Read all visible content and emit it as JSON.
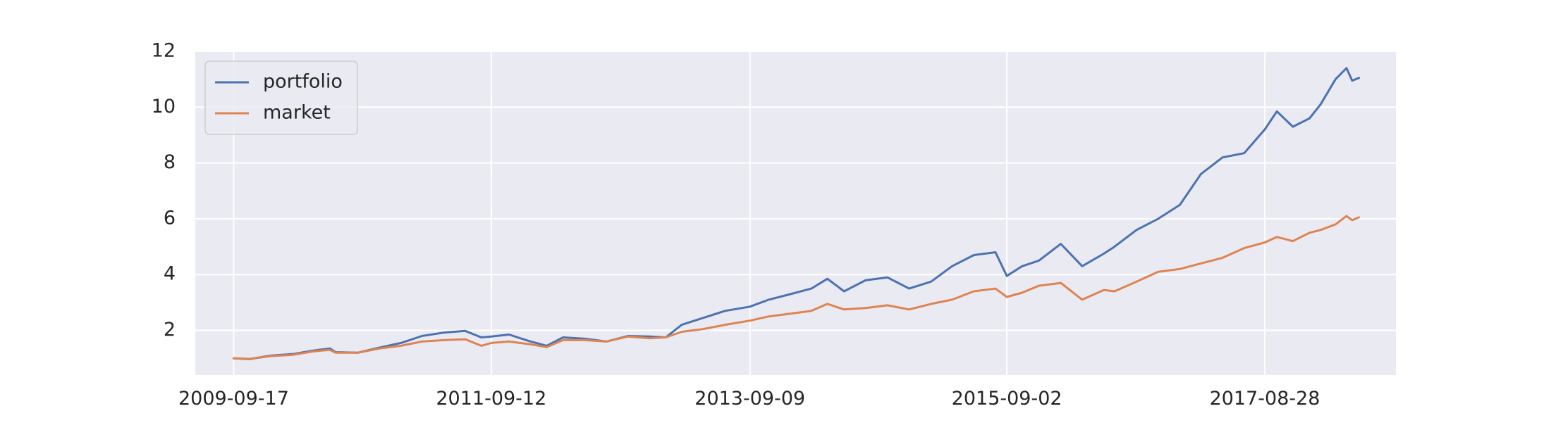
{
  "chart_data": {
    "type": "line",
    "title": "",
    "xlabel": "",
    "ylabel": "",
    "x_tick_labels": [
      "2009-09-17",
      "2011-09-12",
      "2013-09-09",
      "2015-09-02",
      "2017-08-28"
    ],
    "y_tick_labels": [
      "2",
      "4",
      "6",
      "8",
      "10",
      "12"
    ],
    "ylim": [
      0.4,
      12
    ],
    "xlim": [
      "2009-06-01",
      "2018-09-01"
    ],
    "grid": true,
    "legend": {
      "position": "top-left",
      "entries": [
        "portfolio",
        "market"
      ]
    },
    "series": [
      {
        "name": "portfolio",
        "color": "#4c72b0",
        "points": [
          [
            "2009-09-17",
            1.0
          ],
          [
            "2009-11-01",
            0.97
          ],
          [
            "2010-01-01",
            1.1
          ],
          [
            "2010-03-01",
            1.15
          ],
          [
            "2010-05-01",
            1.28
          ],
          [
            "2010-06-15",
            1.35
          ],
          [
            "2010-07-01",
            1.22
          ],
          [
            "2010-09-01",
            1.2
          ],
          [
            "2010-11-01",
            1.38
          ],
          [
            "2011-01-01",
            1.55
          ],
          [
            "2011-03-01",
            1.8
          ],
          [
            "2011-05-01",
            1.92
          ],
          [
            "2011-07-01",
            1.98
          ],
          [
            "2011-08-15",
            1.75
          ],
          [
            "2011-09-12",
            1.78
          ],
          [
            "2011-11-01",
            1.85
          ],
          [
            "2012-01-01",
            1.6
          ],
          [
            "2012-02-15",
            1.45
          ],
          [
            "2012-04-01",
            1.75
          ],
          [
            "2012-06-01",
            1.7
          ],
          [
            "2012-08-01",
            1.6
          ],
          [
            "2012-10-01",
            1.8
          ],
          [
            "2012-12-01",
            1.78
          ],
          [
            "2013-01-15",
            1.75
          ],
          [
            "2013-03-01",
            2.2
          ],
          [
            "2013-05-01",
            2.45
          ],
          [
            "2013-07-01",
            2.7
          ],
          [
            "2013-09-09",
            2.85
          ],
          [
            "2013-11-01",
            3.1
          ],
          [
            "2014-01-01",
            3.3
          ],
          [
            "2014-03-01",
            3.5
          ],
          [
            "2014-04-15",
            3.85
          ],
          [
            "2014-06-01",
            3.4
          ],
          [
            "2014-08-01",
            3.8
          ],
          [
            "2014-10-01",
            3.9
          ],
          [
            "2014-12-01",
            3.5
          ],
          [
            "2015-02-01",
            3.75
          ],
          [
            "2015-04-01",
            4.3
          ],
          [
            "2015-06-01",
            4.7
          ],
          [
            "2015-08-01",
            4.8
          ],
          [
            "2015-09-02",
            3.95
          ],
          [
            "2015-10-15",
            4.3
          ],
          [
            "2015-12-01",
            4.5
          ],
          [
            "2016-02-01",
            5.1
          ],
          [
            "2016-04-01",
            4.3
          ],
          [
            "2016-06-01",
            4.75
          ],
          [
            "2016-07-01",
            5.0
          ],
          [
            "2016-09-01",
            5.6
          ],
          [
            "2016-11-01",
            6.0
          ],
          [
            "2017-01-01",
            6.5
          ],
          [
            "2017-03-01",
            7.6
          ],
          [
            "2017-05-01",
            8.2
          ],
          [
            "2017-07-01",
            8.35
          ],
          [
            "2017-08-28",
            9.2
          ],
          [
            "2017-10-01",
            9.85
          ],
          [
            "2017-11-15",
            9.3
          ],
          [
            "2018-01-01",
            9.6
          ],
          [
            "2018-02-01",
            10.1
          ],
          [
            "2018-03-15",
            11.0
          ],
          [
            "2018-04-15",
            11.4
          ],
          [
            "2018-05-01",
            10.95
          ],
          [
            "2018-05-20",
            11.05
          ]
        ]
      },
      {
        "name": "market",
        "color": "#dd8452",
        "points": [
          [
            "2009-09-17",
            1.0
          ],
          [
            "2009-11-01",
            0.98
          ],
          [
            "2010-01-01",
            1.08
          ],
          [
            "2010-03-01",
            1.12
          ],
          [
            "2010-05-01",
            1.25
          ],
          [
            "2010-06-15",
            1.3
          ],
          [
            "2010-07-01",
            1.2
          ],
          [
            "2010-09-01",
            1.2
          ],
          [
            "2010-11-01",
            1.35
          ],
          [
            "2011-01-01",
            1.45
          ],
          [
            "2011-03-01",
            1.6
          ],
          [
            "2011-05-01",
            1.65
          ],
          [
            "2011-07-01",
            1.68
          ],
          [
            "2011-08-15",
            1.45
          ],
          [
            "2011-09-12",
            1.55
          ],
          [
            "2011-11-01",
            1.6
          ],
          [
            "2012-01-01",
            1.5
          ],
          [
            "2012-02-15",
            1.4
          ],
          [
            "2012-04-01",
            1.65
          ],
          [
            "2012-06-01",
            1.65
          ],
          [
            "2012-08-01",
            1.6
          ],
          [
            "2012-10-01",
            1.78
          ],
          [
            "2012-12-01",
            1.72
          ],
          [
            "2013-01-15",
            1.75
          ],
          [
            "2013-03-01",
            1.95
          ],
          [
            "2013-05-01",
            2.05
          ],
          [
            "2013-07-01",
            2.2
          ],
          [
            "2013-09-09",
            2.35
          ],
          [
            "2013-11-01",
            2.5
          ],
          [
            "2014-01-01",
            2.6
          ],
          [
            "2014-03-01",
            2.7
          ],
          [
            "2014-04-15",
            2.95
          ],
          [
            "2014-06-01",
            2.75
          ],
          [
            "2014-08-01",
            2.8
          ],
          [
            "2014-10-01",
            2.9
          ],
          [
            "2014-12-01",
            2.75
          ],
          [
            "2015-02-01",
            2.95
          ],
          [
            "2015-04-01",
            3.1
          ],
          [
            "2015-06-01",
            3.4
          ],
          [
            "2015-08-01",
            3.5
          ],
          [
            "2015-09-02",
            3.2
          ],
          [
            "2015-10-15",
            3.35
          ],
          [
            "2015-12-01",
            3.6
          ],
          [
            "2016-02-01",
            3.7
          ],
          [
            "2016-04-01",
            3.1
          ],
          [
            "2016-06-01",
            3.45
          ],
          [
            "2016-07-01",
            3.4
          ],
          [
            "2016-09-01",
            3.75
          ],
          [
            "2016-11-01",
            4.1
          ],
          [
            "2017-01-01",
            4.2
          ],
          [
            "2017-03-01",
            4.4
          ],
          [
            "2017-05-01",
            4.6
          ],
          [
            "2017-07-01",
            4.95
          ],
          [
            "2017-08-28",
            5.15
          ],
          [
            "2017-10-01",
            5.35
          ],
          [
            "2017-11-15",
            5.2
          ],
          [
            "2018-01-01",
            5.5
          ],
          [
            "2018-02-01",
            5.6
          ],
          [
            "2018-03-15",
            5.8
          ],
          [
            "2018-04-15",
            6.1
          ],
          [
            "2018-05-01",
            5.95
          ],
          [
            "2018-05-20",
            6.05
          ]
        ]
      }
    ]
  }
}
